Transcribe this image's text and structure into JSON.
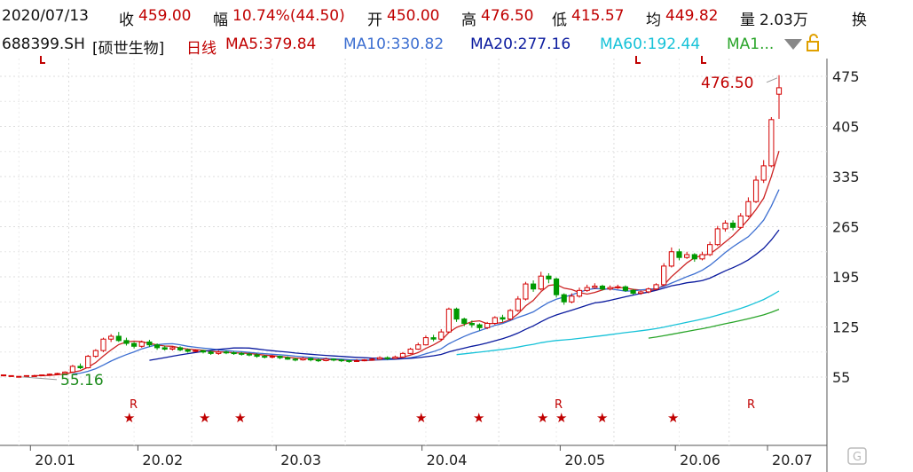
{
  "header": {
    "date": "2020/07/13",
    "close_label": "收",
    "close": "459.00",
    "change_label": "幅",
    "change": "10.74%(44.50)",
    "open_label": "开",
    "open": "450.00",
    "high_label": "高",
    "high": "476.50",
    "low_label": "低",
    "low": "415.57",
    "avg_label": "均",
    "avg": "449.82",
    "volume_label": "量",
    "volume": "2.03万",
    "more_label": "换"
  },
  "ma_line": {
    "code": "688399.SH",
    "name": "[硕世生物]",
    "period": "日线",
    "ma5": "MA5:379.84",
    "ma10": "MA10:330.82",
    "ma20": "MA20:277.16",
    "ma60": "MA60:192.44",
    "ma120": "MA1..."
  },
  "colors": {
    "up": "#d40000",
    "down": "#009900",
    "ma5": "#cc2222",
    "ma10": "#3d6fd1",
    "ma20": "#0a1a9e",
    "ma60": "#16c2d8",
    "ma120": "#2aa52a",
    "text": "#222222"
  },
  "annotations": {
    "high_value": "476.50",
    "low_value": "55.16",
    "r_marker": "R",
    "star": "★"
  },
  "chart_data": {
    "type": "candlestick",
    "ylim": [
      20,
      500
    ],
    "yticks": [
      475,
      405,
      335,
      265,
      195,
      125,
      55
    ],
    "xticks": [
      "20.01",
      "20.02",
      "20.03",
      "20.04",
      "20.05",
      "20.06",
      "20.07"
    ],
    "candles": [
      [
        58,
        58,
        57,
        56
      ],
      [
        57,
        57,
        57,
        56
      ],
      [
        56,
        56,
        56,
        55.16
      ],
      [
        56,
        57,
        57,
        56
      ],
      [
        57,
        57,
        58,
        56
      ],
      [
        57,
        58,
        58,
        57
      ],
      [
        58,
        59,
        60,
        57
      ],
      [
        59,
        60,
        61,
        58
      ],
      [
        60,
        62,
        63,
        59
      ],
      [
        62,
        70,
        72,
        61
      ],
      [
        70,
        68,
        74,
        66
      ],
      [
        68,
        84,
        86,
        67
      ],
      [
        84,
        92,
        94,
        82
      ],
      [
        92,
        108,
        110,
        90
      ],
      [
        108,
        112,
        115,
        104
      ],
      [
        112,
        106,
        118,
        104
      ],
      [
        106,
        102,
        110,
        99
      ],
      [
        102,
        98,
        104,
        95
      ],
      [
        98,
        104,
        106,
        96
      ],
      [
        104,
        100,
        107,
        97
      ],
      [
        100,
        96,
        102,
        93
      ],
      [
        96,
        94,
        99,
        92
      ],
      [
        94,
        96,
        98,
        92
      ],
      [
        96,
        93,
        98,
        91
      ],
      [
        93,
        91,
        95,
        89
      ],
      [
        91,
        92,
        94,
        90
      ],
      [
        92,
        90,
        93,
        88
      ],
      [
        90,
        88,
        92,
        86
      ],
      [
        88,
        90,
        92,
        86
      ],
      [
        90,
        89,
        92,
        87
      ],
      [
        89,
        88,
        91,
        86
      ],
      [
        88,
        87,
        90,
        85
      ],
      [
        87,
        86,
        89,
        84
      ],
      [
        86,
        84,
        88,
        82
      ],
      [
        84,
        83,
        86,
        81
      ],
      [
        83,
        84,
        86,
        81
      ],
      [
        84,
        82,
        85,
        80
      ],
      [
        82,
        80,
        84,
        79
      ],
      [
        80,
        79,
        82,
        77
      ],
      [
        79,
        81,
        83,
        78
      ],
      [
        81,
        79,
        82,
        77
      ],
      [
        79,
        78,
        81,
        76
      ],
      [
        78,
        80,
        82,
        77
      ],
      [
        80,
        79,
        81,
        77
      ],
      [
        79,
        78,
        80,
        76
      ],
      [
        78,
        77,
        79,
        75
      ],
      [
        77,
        78,
        80,
        76
      ],
      [
        78,
        79,
        80,
        77
      ],
      [
        79,
        80,
        82,
        78
      ],
      [
        80,
        82,
        84,
        79
      ],
      [
        82,
        81,
        84,
        79
      ],
      [
        81,
        83,
        85,
        80
      ],
      [
        83,
        88,
        90,
        82
      ],
      [
        88,
        94,
        96,
        87
      ],
      [
        94,
        100,
        103,
        93
      ],
      [
        100,
        110,
        113,
        99
      ],
      [
        110,
        108,
        114,
        105
      ],
      [
        108,
        118,
        122,
        106
      ],
      [
        118,
        150,
        152,
        117
      ],
      [
        150,
        136,
        152,
        132
      ],
      [
        136,
        130,
        138,
        126
      ],
      [
        130,
        128,
        134,
        124
      ],
      [
        128,
        124,
        130,
        120
      ],
      [
        124,
        130,
        132,
        122
      ],
      [
        130,
        138,
        140,
        128
      ],
      [
        138,
        136,
        142,
        132
      ],
      [
        136,
        148,
        150,
        134
      ],
      [
        148,
        164,
        168,
        146
      ],
      [
        164,
        185,
        188,
        162
      ],
      [
        185,
        178,
        190,
        174
      ],
      [
        178,
        196,
        202,
        176
      ],
      [
        196,
        192,
        200,
        186
      ],
      [
        192,
        170,
        194,
        166
      ],
      [
        170,
        160,
        172,
        156
      ],
      [
        160,
        168,
        172,
        158
      ],
      [
        168,
        176,
        180,
        166
      ],
      [
        176,
        180,
        184,
        174
      ],
      [
        180,
        182,
        186,
        178
      ],
      [
        182,
        178,
        184,
        176
      ],
      [
        178,
        180,
        183,
        176
      ],
      [
        180,
        181,
        184,
        178
      ],
      [
        181,
        176,
        183,
        174
      ],
      [
        176,
        172,
        178,
        170
      ],
      [
        172,
        174,
        176,
        170
      ],
      [
        174,
        178,
        180,
        172
      ],
      [
        178,
        184,
        186,
        176
      ],
      [
        184,
        210,
        214,
        182
      ],
      [
        210,
        230,
        236,
        208
      ],
      [
        230,
        222,
        234,
        218
      ],
      [
        222,
        226,
        230,
        220
      ],
      [
        226,
        220,
        228,
        216
      ],
      [
        220,
        226,
        230,
        218
      ],
      [
        226,
        240,
        244,
        224
      ],
      [
        240,
        262,
        266,
        238
      ],
      [
        262,
        270,
        274,
        258
      ],
      [
        270,
        264,
        274,
        260
      ],
      [
        264,
        280,
        284,
        262
      ],
      [
        280,
        300,
        306,
        278
      ],
      [
        300,
        330,
        336,
        298
      ],
      [
        330,
        350,
        358,
        326
      ],
      [
        350,
        414.5,
        418,
        348
      ],
      [
        450,
        459,
        476.5,
        415.57
      ]
    ]
  }
}
